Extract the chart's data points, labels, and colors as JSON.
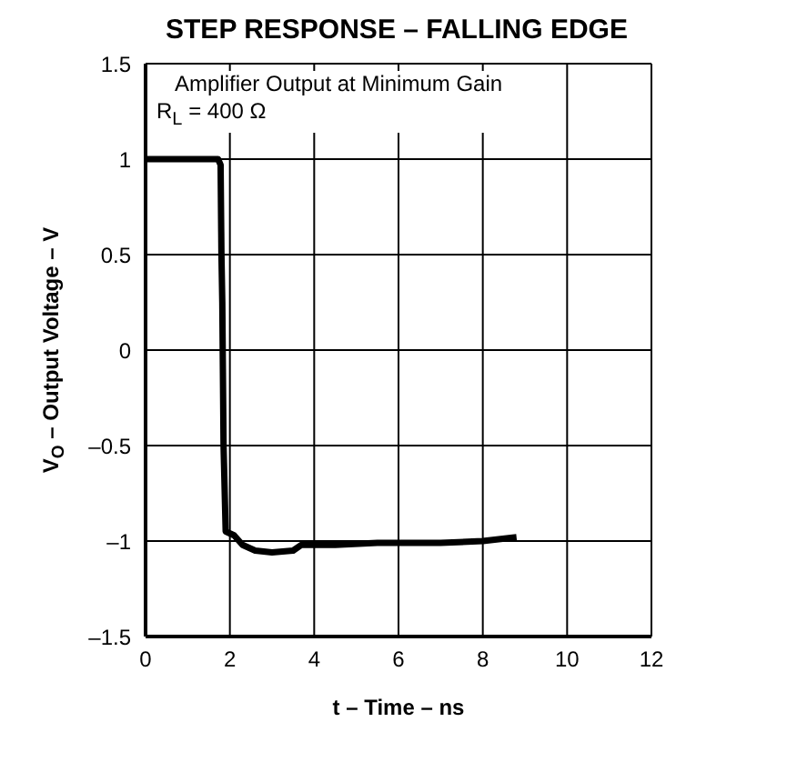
{
  "chart_data": {
    "type": "line",
    "title": "STEP RESPONSE – FALLING EDGE",
    "xlabel": "t – Time – ns",
    "ylabel": "V$_{O}$ – Output Voltage – V",
    "annotations": [
      "Amplifier Output at Minimum Gain",
      "R$_{L}$ = 400 Ω"
    ],
    "series": [
      {
        "color": "#000000",
        "x": [
          0,
          1.72,
          1.78,
          1.8,
          1.82,
          1.85,
          1.9,
          2.1,
          2.3,
          2.6,
          3.0,
          3.5,
          3.7,
          4.5,
          5.5,
          7,
          8,
          8.8
        ],
        "values": [
          1,
          1,
          0.97,
          0.5,
          0.25,
          -0.5,
          -0.95,
          -0.97,
          -1.02,
          -1.05,
          -1.06,
          -1.05,
          -1.02,
          -1.02,
          -1.01,
          -1.01,
          -1.0,
          -0.98
        ]
      }
    ],
    "xlim": [
      0,
      12
    ],
    "xticks": [
      0,
      2,
      4,
      6,
      8,
      10,
      12
    ],
    "ylim": [
      -1.5,
      1.5
    ],
    "yticks": [
      {
        "value": -1.5,
        "label": "–1.5"
      },
      {
        "value": -1,
        "label": "–1"
      },
      {
        "value": -0.5,
        "label": "–0.5"
      },
      0,
      0.5,
      1,
      1.5
    ],
    "grid": true,
    "legend": false,
    "marker": "none",
    "line_style": "solid"
  }
}
